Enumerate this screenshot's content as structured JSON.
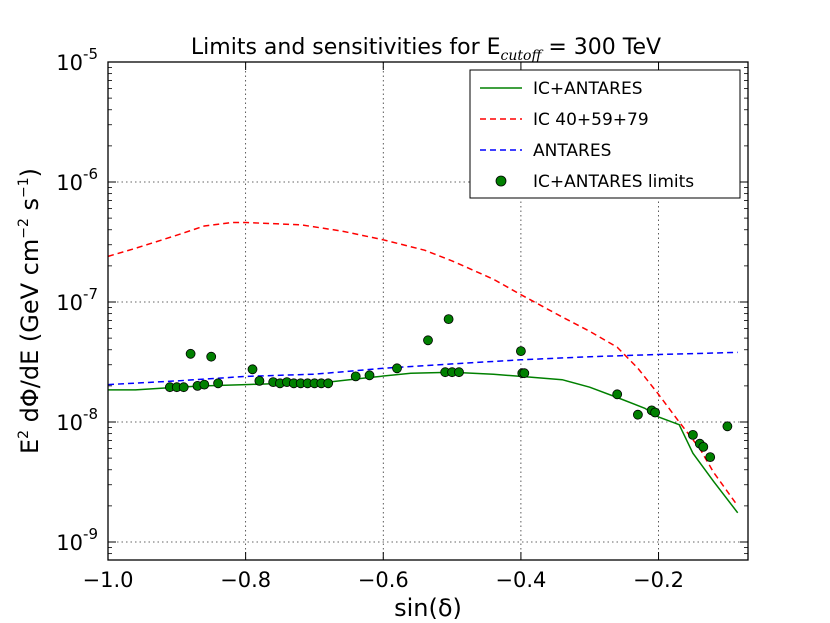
{
  "chart_data": {
    "type": "line",
    "title": {
      "prefix": "Limits and sensitivities for E",
      "subscript": "cutoff",
      "suffix": " = 300 TeV"
    },
    "xlabel": "sin(δ)",
    "ylabel": {
      "part1": "E",
      "sup1": "2",
      "part2": " dΦ/dE (GeV cm",
      "sup2": "−2",
      "part3": " s",
      "sup3": "−1",
      "part4": ")"
    },
    "xlim": [
      -1.0,
      -0.07
    ],
    "ylim_log10": [
      -9.15,
      -5.0
    ],
    "yscale": "log",
    "grid": true,
    "legend_position": "top-right",
    "x_ticks": [
      {
        "value": -1.0,
        "label": "−1.0"
      },
      {
        "value": -0.8,
        "label": "−0.8"
      },
      {
        "value": -0.6,
        "label": "−0.6"
      },
      {
        "value": -0.4,
        "label": "−0.4"
      },
      {
        "value": -0.2,
        "label": "−0.2"
      }
    ],
    "y_ticks": [
      {
        "exp": -9,
        "base": "10",
        "sup": "-9"
      },
      {
        "exp": -8,
        "base": "10",
        "sup": "-8"
      },
      {
        "exp": -7,
        "base": "10",
        "sup": "-7"
      },
      {
        "exp": -6,
        "base": "10",
        "sup": "-6"
      },
      {
        "exp": -5,
        "base": "10",
        "sup": "-5"
      }
    ],
    "series": [
      {
        "name": "IC+ANTARES",
        "color": "#008000",
        "dash": "solid",
        "x": [
          -1.0,
          -0.96,
          -0.9,
          -0.86,
          -0.8,
          -0.74,
          -0.68,
          -0.62,
          -0.56,
          -0.5,
          -0.44,
          -0.4,
          -0.34,
          -0.3,
          -0.26,
          -0.22,
          -0.2,
          -0.17,
          -0.15,
          -0.12,
          -0.085
        ],
        "y": [
          1.85e-08,
          1.85e-08,
          1.95e-08,
          2e-08,
          2.05e-08,
          2.1e-08,
          2.15e-08,
          2.35e-08,
          2.55e-08,
          2.6e-08,
          2.5e-08,
          2.4e-08,
          2.25e-08,
          1.95e-08,
          1.6e-08,
          1.3e-08,
          1.1e-08,
          9.5e-09,
          5.5e-09,
          3.2e-09,
          1.75e-09
        ]
      },
      {
        "name": "IC 40+59+79",
        "color": "#ff0000",
        "dash": "dashed",
        "x": [
          -1.0,
          -0.96,
          -0.9,
          -0.86,
          -0.82,
          -0.8,
          -0.72,
          -0.66,
          -0.6,
          -0.54,
          -0.5,
          -0.44,
          -0.4,
          -0.34,
          -0.3,
          -0.26,
          -0.23,
          -0.2,
          -0.17,
          -0.14,
          -0.12,
          -0.085
        ],
        "y": [
          2.4e-07,
          2.8e-07,
          3.6e-07,
          4.3e-07,
          4.6e-07,
          4.6e-07,
          4.4e-07,
          3.9e-07,
          3.3e-07,
          2.7e-07,
          2.2e-07,
          1.55e-07,
          1.15e-07,
          7.5e-08,
          5.7e-08,
          4.2e-08,
          2.8e-08,
          1.7e-08,
          1e-08,
          6e-09,
          3.8e-09,
          2e-09
        ]
      },
      {
        "name": "ANTARES",
        "color": "#0000ff",
        "dash": "dashed",
        "x": [
          -1.0,
          -0.9,
          -0.8,
          -0.7,
          -0.6,
          -0.5,
          -0.4,
          -0.3,
          -0.2,
          -0.085
        ],
        "y": [
          2.05e-08,
          2.2e-08,
          2.4e-08,
          2.5e-08,
          2.8e-08,
          3.05e-08,
          3.3e-08,
          3.5e-08,
          3.65e-08,
          3.8e-08
        ]
      }
    ],
    "scatter": {
      "name": "IC+ANTARES limits",
      "color": "#008000",
      "x": [
        -0.91,
        -0.9,
        -0.89,
        -0.88,
        -0.87,
        -0.86,
        -0.85,
        -0.84,
        -0.79,
        -0.78,
        -0.76,
        -0.75,
        -0.74,
        -0.73,
        -0.72,
        -0.71,
        -0.7,
        -0.69,
        -0.68,
        -0.64,
        -0.62,
        -0.58,
        -0.535,
        -0.51,
        -0.505,
        -0.5,
        -0.49,
        -0.4,
        -0.398,
        -0.395,
        -0.26,
        -0.23,
        -0.21,
        -0.205,
        -0.15,
        -0.14,
        -0.135,
        -0.125,
        -0.1
      ],
      "y": [
        1.95e-08,
        1.95e-08,
        1.95e-08,
        3.7e-08,
        2e-08,
        2.05e-08,
        3.5e-08,
        2.1e-08,
        2.75e-08,
        2.2e-08,
        2.15e-08,
        2.1e-08,
        2.15e-08,
        2.1e-08,
        2.1e-08,
        2.1e-08,
        2.1e-08,
        2.1e-08,
        2.1e-08,
        2.4e-08,
        2.45e-08,
        2.8e-08,
        4.8e-08,
        2.6e-08,
        7.2e-08,
        2.6e-08,
        2.6e-08,
        3.9e-08,
        2.55e-08,
        2.55e-08,
        1.7e-08,
        1.15e-08,
        1.25e-08,
        1.2e-08,
        7.8e-09,
        6.6e-09,
        6.2e-09,
        5.1e-09,
        9.2e-09
      ]
    }
  }
}
